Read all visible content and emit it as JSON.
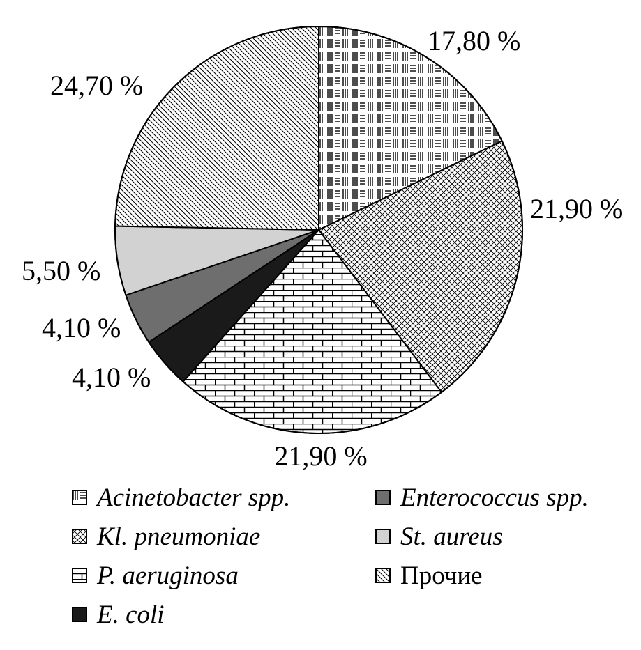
{
  "chart_data": {
    "type": "pie",
    "title": "",
    "slices": [
      {
        "label": "Acinetobacter spp.",
        "value": 17.8,
        "value_label": "17,80 %",
        "pattern": "lines",
        "italic": true
      },
      {
        "label": "Kl. pneumoniae",
        "value": 21.9,
        "value_label": "21,90 %",
        "pattern": "crosshatch",
        "italic": true
      },
      {
        "label": "P. aeruginosa",
        "value": 21.9,
        "value_label": "21,90 %",
        "pattern": "brick",
        "italic": true
      },
      {
        "label": "E. coli",
        "value": 4.1,
        "value_label": "4,10 %",
        "pattern": "solid-black",
        "italic": true
      },
      {
        "label": "Enterococcus spp.",
        "value": 4.1,
        "value_label": "4,10 %",
        "pattern": "solid-darkgray",
        "italic": true
      },
      {
        "label": "St. aureus",
        "value": 5.5,
        "value_label": "5,50 %",
        "pattern": "solid-lightgray",
        "italic": true
      },
      {
        "label": "Прочие",
        "value": 24.7,
        "value_label": "24,70 %",
        "pattern": "diagonal",
        "italic": false
      }
    ],
    "start_angle": "12 o'clock",
    "direction": "clockwise",
    "legend_position": "bottom",
    "colors": {
      "black": "#1a1a1a",
      "dark_gray": "#6e6e6e",
      "light_gray": "#d2d2d2",
      "outline": "#000000"
    }
  }
}
